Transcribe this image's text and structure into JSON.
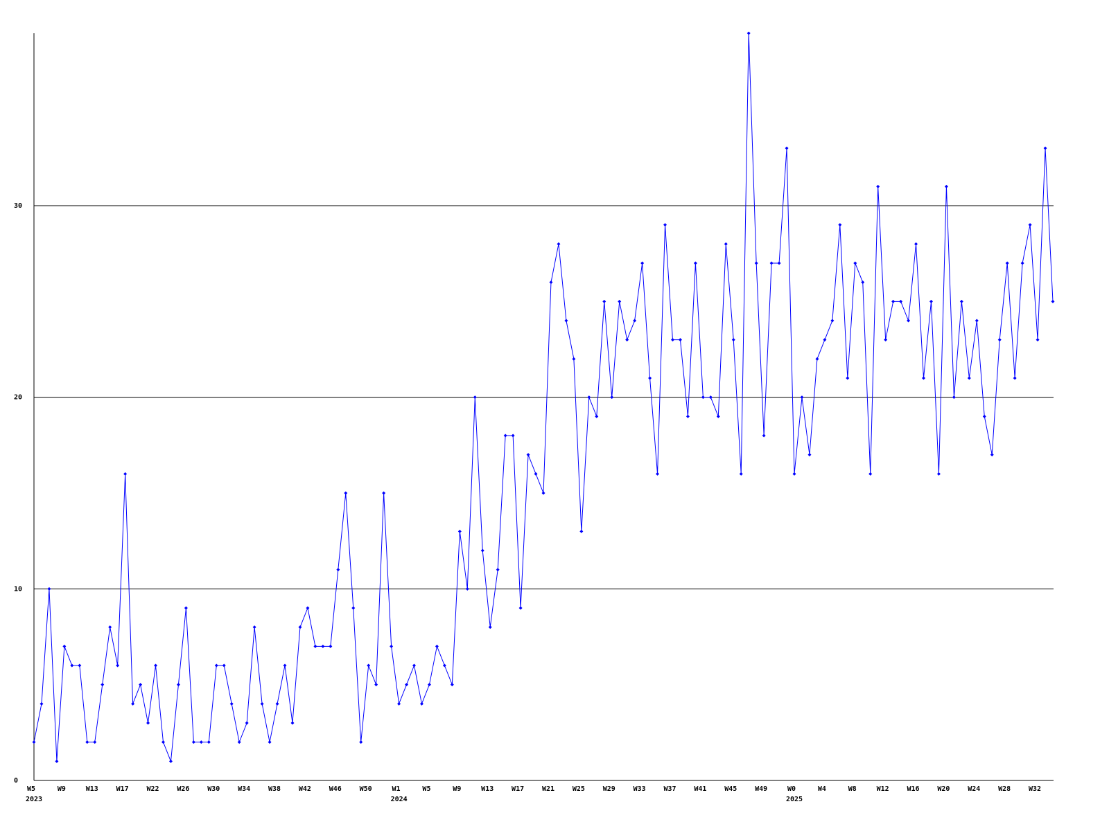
{
  "chart_data": {
    "type": "line",
    "categories": [
      "W5",
      null,
      null,
      null,
      "W9",
      null,
      null,
      null,
      "W13",
      null,
      null,
      null,
      "W17",
      null,
      null,
      null,
      "W22",
      null,
      null,
      null,
      "W26",
      null,
      null,
      null,
      "W30",
      null,
      null,
      null,
      "W34",
      null,
      null,
      null,
      "W38",
      null,
      null,
      null,
      "W42",
      null,
      null,
      null,
      "W46",
      null,
      null,
      null,
      "W50",
      null,
      null,
      null,
      "W1",
      null,
      null,
      null,
      "W5",
      null,
      null,
      null,
      "W9",
      null,
      null,
      null,
      "W13",
      null,
      null,
      null,
      "W17",
      null,
      null,
      null,
      "W21",
      null,
      null,
      null,
      "W25",
      null,
      null,
      null,
      "W29",
      null,
      null,
      null,
      "W33",
      null,
      null,
      null,
      "W37",
      null,
      null,
      null,
      "W41",
      null,
      null,
      null,
      "W45",
      null,
      null,
      null,
      "W49",
      null,
      null,
      null,
      "W0",
      null,
      null,
      null,
      "W4",
      null,
      null,
      null,
      "W8",
      null,
      null,
      null,
      "W12",
      null,
      null,
      null,
      "W16",
      null,
      null,
      null,
      "W20",
      null,
      null,
      null,
      "W24",
      null,
      null,
      null,
      "W28",
      null,
      null,
      null,
      "W32",
      null,
      null
    ],
    "years": [
      "2023",
      null,
      null,
      null,
      null,
      null,
      null,
      null,
      null,
      null,
      null,
      null,
      null,
      null,
      null,
      null,
      null,
      null,
      null,
      null,
      null,
      null,
      null,
      null,
      null,
      null,
      null,
      null,
      null,
      null,
      null,
      null,
      null,
      null,
      null,
      null,
      null,
      null,
      null,
      null,
      null,
      null,
      null,
      null,
      null,
      null,
      null,
      null,
      "2024",
      null,
      null,
      null,
      null,
      null,
      null,
      null,
      null,
      null,
      null,
      null,
      null,
      null,
      null,
      null,
      null,
      null,
      null,
      null,
      null,
      null,
      null,
      null,
      null,
      null,
      null,
      null,
      null,
      null,
      null,
      null,
      null,
      null,
      null,
      null,
      null,
      null,
      null,
      null,
      null,
      null,
      null,
      null,
      null,
      null,
      null,
      null,
      null,
      null,
      null,
      null,
      "2025",
      null,
      null,
      null,
      null,
      null,
      null,
      null,
      null,
      null,
      null,
      null,
      null,
      null,
      null,
      null,
      null,
      null,
      null,
      null,
      null,
      null,
      null,
      null,
      null,
      null,
      null,
      null,
      null,
      null,
      null,
      null,
      null,
      null,
      null
    ],
    "series": [
      {
        "color": "#0000ff",
        "values": [
          2,
          4,
          10,
          1,
          7,
          6,
          6,
          2,
          2,
          5,
          8,
          6,
          16,
          4,
          5,
          3,
          6,
          2,
          1,
          5,
          9,
          2,
          2,
          2,
          6,
          6,
          4,
          2,
          3,
          8,
          4,
          2,
          4,
          6,
          3,
          8,
          9,
          7,
          7,
          7,
          11,
          15,
          9,
          2,
          6,
          5,
          15,
          7,
          4,
          5,
          6,
          4,
          5,
          7,
          6,
          5,
          13,
          10,
          20,
          12,
          8,
          11,
          18,
          18,
          9,
          17,
          16,
          15,
          26,
          28,
          24,
          22,
          13,
          20,
          19,
          25,
          20,
          25,
          23,
          24,
          27,
          21,
          16,
          29,
          23,
          23,
          19,
          27,
          20,
          20,
          19,
          28,
          23,
          16,
          39,
          27,
          18,
          27,
          27,
          33,
          16,
          20,
          17,
          22,
          23,
          24,
          29,
          21,
          27,
          26,
          16,
          31,
          23,
          25,
          25,
          24,
          28,
          21,
          25,
          16,
          31,
          20,
          25,
          21,
          24,
          19,
          17,
          23,
          27,
          21,
          27,
          29,
          23,
          33,
          25
        ]
      }
    ],
    "ylim": [
      0,
      39
    ],
    "yticks": [
      0,
      10,
      20,
      30
    ],
    "grid": true
  }
}
